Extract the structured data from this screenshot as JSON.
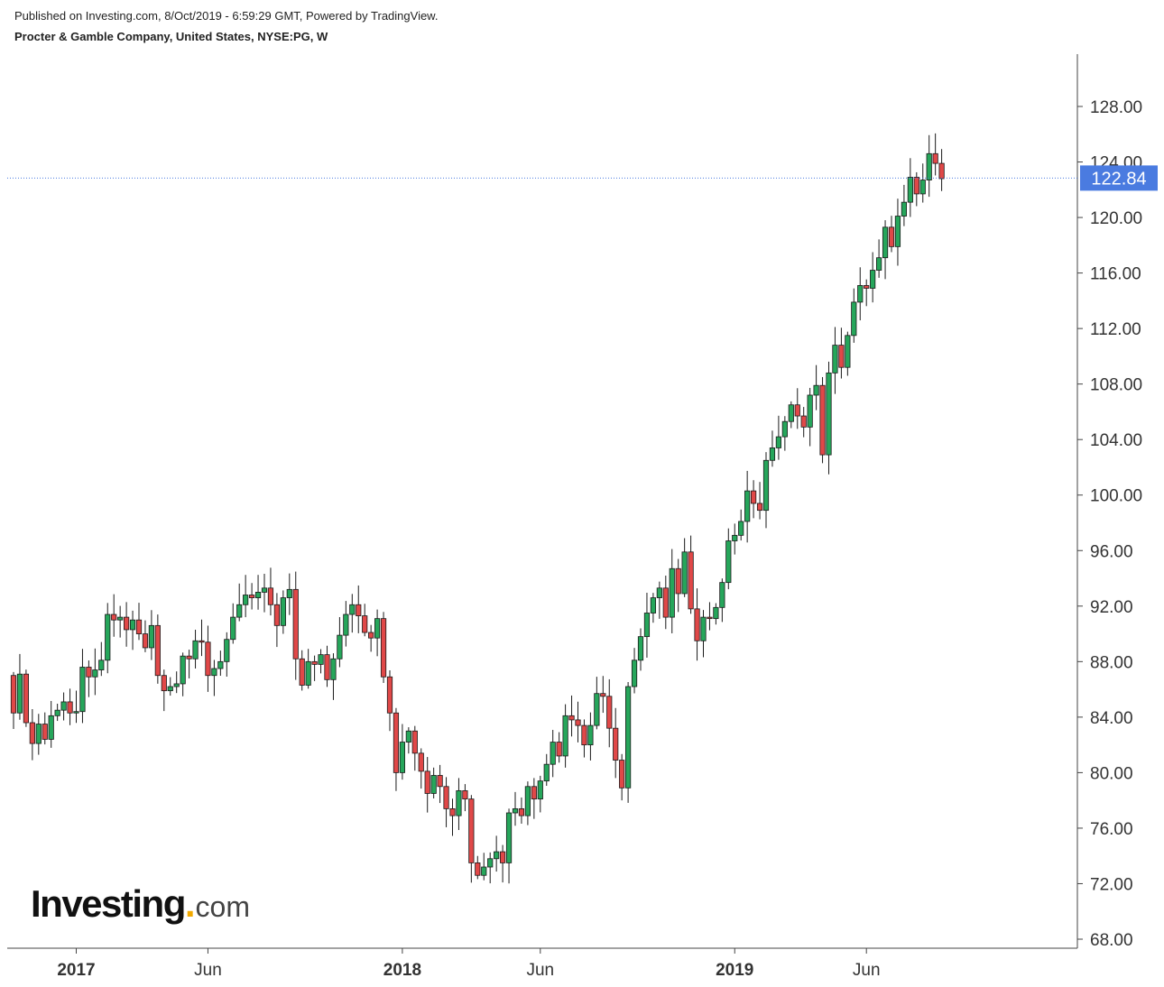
{
  "header": {
    "published": "Published on Investing.com, 8/Oct/2019 - 6:59:29 GMT, Powered by TradingView.",
    "symbol": "Procter & Gamble Company, United States, NYSE:PG, W"
  },
  "logo": {
    "main": "Investing",
    "dot": ".",
    "suffix": "com"
  },
  "chart_data": {
    "type": "candlestick",
    "title": "Procter & Gamble Company, United States, NYSE:PG, W",
    "timeframe": "W",
    "ylim": [
      67,
      131
    ],
    "y_ticks": [
      "68.00",
      "72.00",
      "76.00",
      "80.00",
      "84.00",
      "88.00",
      "92.00",
      "96.00",
      "100.00",
      "104.00",
      "108.00",
      "112.00",
      "116.00",
      "120.00",
      "124.00",
      "128.00"
    ],
    "x_ticks": [
      {
        "label": "2017",
        "bold": true,
        "week": 10
      },
      {
        "label": "Jun",
        "bold": false,
        "week": 31
      },
      {
        "label": "2018",
        "bold": true,
        "week": 62
      },
      {
        "label": "Jun",
        "bold": false,
        "week": 84
      },
      {
        "label": "2019",
        "bold": true,
        "week": 115
      },
      {
        "label": "Jun",
        "bold": false,
        "week": 136
      }
    ],
    "last_price": 122.84,
    "last_price_label": "122.84",
    "colors": {
      "up": "#26a65b",
      "down": "#e04848",
      "wick": "#1a1a1a",
      "price_line": "#4a7be0",
      "price_badge": "#4a7be0"
    },
    "weekly_closes": [
      84.3,
      87.1,
      83.6,
      82.1,
      83.5,
      82.4,
      84.1,
      84.5,
      85.1,
      84.3,
      84.4,
      87.6,
      86.9,
      87.4,
      88.1,
      91.4,
      91.0,
      91.2,
      90.3,
      91.0,
      90.0,
      89.0,
      90.6,
      87.0,
      85.9,
      86.2,
      86.4,
      88.4,
      88.2,
      89.5,
      89.4,
      87.0,
      87.5,
      88.0,
      89.6,
      91.2,
      92.1,
      92.8,
      92.6,
      93.0,
      93.3,
      92.1,
      90.6,
      92.6,
      93.2,
      88.2,
      86.3,
      88.0,
      87.8,
      88.5,
      86.7,
      88.2,
      89.9,
      91.4,
      92.1,
      91.3,
      90.1,
      89.7,
      91.1,
      86.9,
      84.3,
      80.0,
      82.2,
      83.0,
      81.4,
      80.1,
      78.5,
      79.8,
      79.0,
      77.4,
      76.9,
      78.7,
      78.1,
      73.5,
      72.6,
      73.2,
      73.8,
      74.3,
      73.5,
      77.1,
      77.4,
      76.9,
      79.0,
      78.1,
      79.4,
      80.6,
      82.2,
      81.2,
      84.1,
      83.8,
      83.4,
      82.0,
      83.4,
      85.7,
      85.5,
      83.2,
      80.9,
      78.9,
      86.2,
      88.1,
      89.8,
      91.5,
      92.6,
      93.3,
      91.2,
      94.7,
      92.9,
      95.9,
      91.8,
      89.5,
      91.2,
      91.1,
      91.9,
      93.7,
      96.7,
      97.1,
      98.1,
      100.3,
      99.4,
      98.9,
      102.5,
      103.4,
      104.2,
      105.3,
      106.5,
      105.7,
      104.9,
      107.2,
      107.9,
      102.9,
      108.8,
      110.8,
      109.2,
      111.5,
      113.9,
      115.1,
      114.9,
      116.2,
      117.1,
      119.3,
      117.9,
      120.1,
      121.1,
      122.9,
      121.7,
      122.7,
      124.6,
      123.9,
      122.8
    ],
    "first_open": 87.0
  }
}
